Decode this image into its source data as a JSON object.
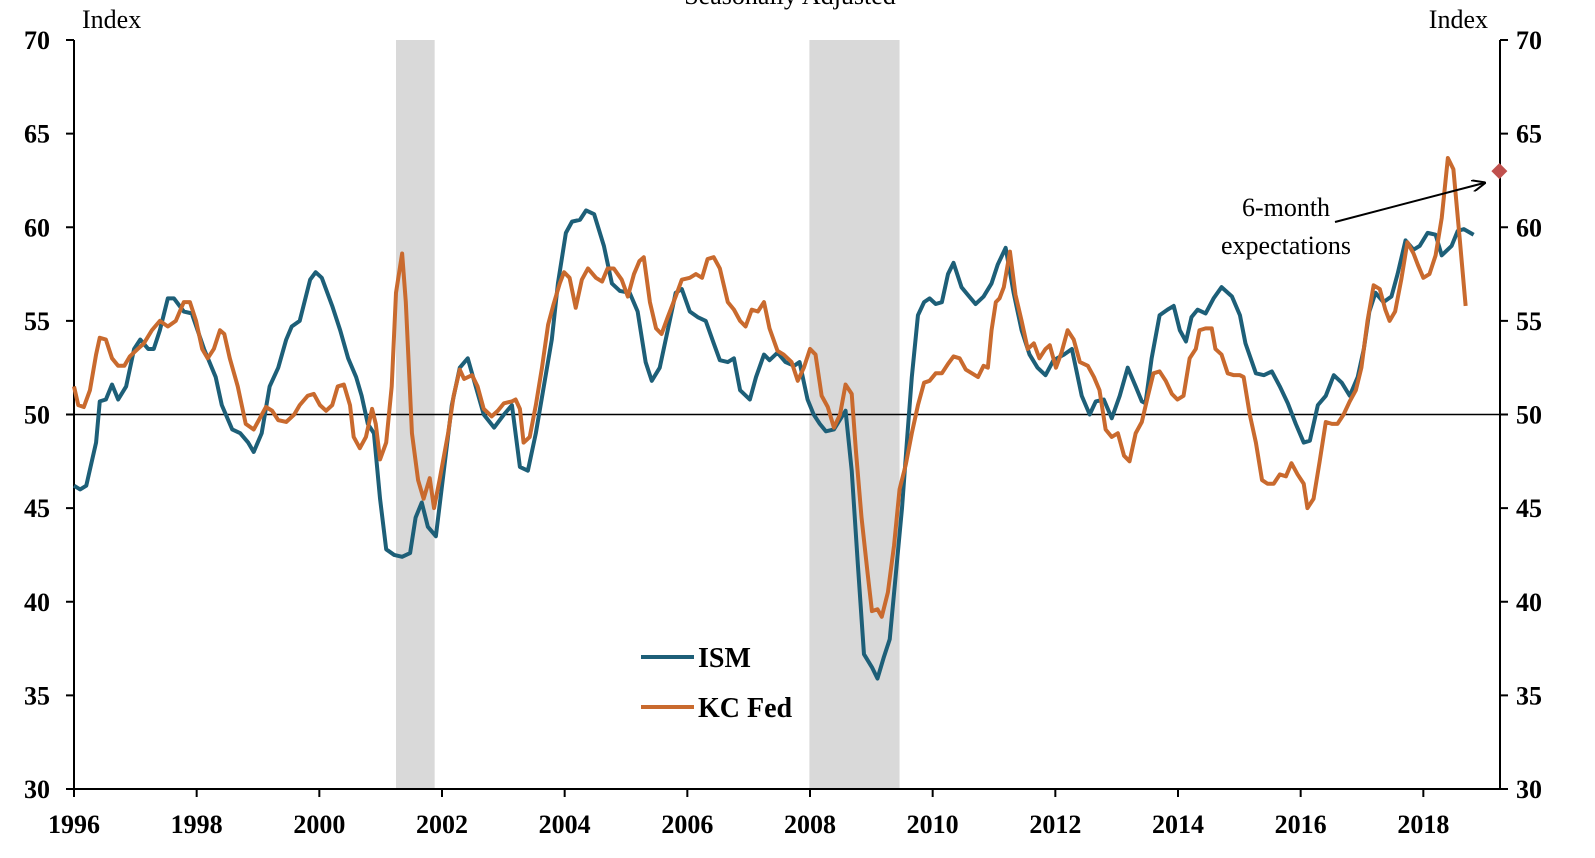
{
  "chart_data": {
    "type": "line",
    "subtitle": "Seasonally Adjusted",
    "y_label": "Index",
    "y2_label": "Index",
    "xlim": [
      1996,
      2019.25
    ],
    "xticks": [
      1996,
      1998,
      2000,
      2002,
      2004,
      2006,
      2008,
      2010,
      2012,
      2014,
      2016,
      2018
    ],
    "ylim": [
      30,
      70
    ],
    "yticks": [
      30,
      35,
      40,
      45,
      50,
      55,
      60,
      65,
      70
    ],
    "y2lim": [
      30,
      70
    ],
    "y2ticks": [
      30,
      35,
      40,
      45,
      50,
      55,
      60,
      65,
      70
    ],
    "hline": 50,
    "recession_color": "#d9d9d9",
    "recessions": [
      [
        2001.25,
        2001.88
      ],
      [
        2007.99,
        2009.46
      ]
    ],
    "series": [
      {
        "name": "ISM",
        "color": "#1d5f78",
        "x": [
          1996.0,
          1996.1,
          1996.2,
          1996.36,
          1996.42,
          1996.52,
          1996.62,
          1996.72,
          1996.85,
          1996.98,
          1997.08,
          1997.21,
          1997.3,
          1997.4,
          1997.53,
          1997.63,
          1997.79,
          1997.92,
          1998.12,
          1998.31,
          1998.41,
          1998.58,
          1998.71,
          1998.84,
          1998.93,
          1999.06,
          1999.19,
          1999.33,
          1999.46,
          1999.55,
          1999.68,
          1999.85,
          1999.94,
          2000.04,
          2000.21,
          2000.34,
          2000.47,
          2000.6,
          2000.69,
          2000.79,
          2000.89,
          2000.99,
          2001.09,
          2001.22,
          2001.35,
          2001.48,
          2001.57,
          2001.67,
          2001.77,
          2001.9,
          2002.03,
          2002.16,
          2002.29,
          2002.42,
          2002.55,
          2002.68,
          2002.85,
          2003.01,
          2003.14,
          2003.27,
          2003.4,
          2003.53,
          2003.66,
          2003.79,
          2003.89,
          2004.02,
          2004.12,
          2004.25,
          2004.35,
          2004.48,
          2004.64,
          2004.77,
          2004.9,
          2005.06,
          2005.19,
          2005.32,
          2005.42,
          2005.55,
          2005.68,
          2005.81,
          2005.91,
          2006.04,
          2006.17,
          2006.3,
          2006.43,
          2006.53,
          2006.66,
          2006.76,
          2006.86,
          2007.02,
          2007.12,
          2007.25,
          2007.34,
          2007.47,
          2007.6,
          2007.74,
          2007.83,
          2007.96,
          2008.06,
          2008.16,
          2008.26,
          2008.39,
          2008.58,
          2008.68,
          2008.78,
          2008.88,
          2009.01,
          2009.1,
          2009.2,
          2009.3,
          2009.4,
          2009.5,
          2009.59,
          2009.66,
          2009.76,
          2009.86,
          2009.95,
          2010.05,
          2010.15,
          2010.25,
          2010.34,
          2010.47,
          2010.57,
          2010.7,
          2010.83,
          2010.96,
          2011.06,
          2011.19,
          2011.32,
          2011.45,
          2011.58,
          2011.71,
          2011.84,
          2011.97,
          2012.14,
          2012.27,
          2012.43,
          2012.56,
          2012.66,
          2012.79,
          2012.92,
          2013.05,
          2013.18,
          2013.31,
          2013.41,
          2013.47,
          2013.57,
          2013.7,
          2013.83,
          2013.93,
          2014.03,
          2014.13,
          2014.22,
          2014.32,
          2014.45,
          2014.58,
          2014.71,
          2014.88,
          2015.01,
          2015.1,
          2015.27,
          2015.4,
          2015.53,
          2015.66,
          2015.79,
          2015.92,
          2016.05,
          2016.15,
          2016.28,
          2016.41,
          2016.54,
          2016.67,
          2016.8,
          2016.93,
          2017.03,
          2017.12,
          2017.22,
          2017.35,
          2017.48,
          2017.58,
          2017.71,
          2017.84,
          2017.94,
          2018.07,
          2018.2,
          2018.3,
          2018.46,
          2018.56,
          2018.66,
          2018.82
        ],
        "values": [
          46.2,
          46.0,
          46.2,
          48.5,
          50.7,
          50.8,
          51.6,
          50.8,
          51.5,
          53.5,
          54.0,
          53.5,
          53.5,
          54.5,
          56.2,
          56.2,
          55.5,
          55.4,
          53.5,
          52.0,
          50.5,
          49.2,
          49.0,
          48.5,
          48.0,
          49.0,
          51.5,
          52.5,
          54.0,
          54.7,
          55.0,
          57.2,
          57.6,
          57.3,
          55.8,
          54.5,
          53.0,
          52.0,
          51.0,
          49.5,
          49.0,
          45.5,
          42.8,
          42.5,
          42.4,
          42.6,
          44.5,
          45.3,
          44.0,
          43.5,
          47.0,
          50.5,
          52.5,
          53.0,
          51.5,
          50.0,
          49.3,
          50.0,
          50.5,
          47.2,
          47.0,
          49.0,
          51.5,
          54.0,
          57.0,
          59.7,
          60.3,
          60.4,
          60.9,
          60.7,
          59.0,
          57.0,
          56.6,
          56.5,
          55.5,
          52.8,
          51.8,
          52.5,
          54.5,
          56.5,
          56.7,
          55.5,
          55.2,
          55.0,
          53.8,
          52.9,
          52.8,
          53.0,
          51.3,
          50.8,
          52.0,
          53.2,
          52.9,
          53.3,
          52.8,
          52.6,
          52.8,
          50.8,
          50.0,
          49.5,
          49.1,
          49.2,
          50.2,
          47.0,
          42.0,
          37.2,
          36.5,
          35.9,
          37.0,
          38.0,
          41.5,
          45.0,
          49.0,
          52.0,
          55.3,
          56.0,
          56.2,
          55.9,
          56.0,
          57.5,
          58.1,
          56.8,
          56.4,
          55.9,
          56.3,
          57.0,
          58.0,
          58.9,
          56.5,
          54.5,
          53.2,
          52.5,
          52.1,
          52.9,
          53.2,
          53.5,
          51.0,
          50.0,
          50.7,
          50.8,
          49.8,
          51.0,
          52.5,
          51.5,
          50.7,
          50.6,
          53.0,
          55.3,
          55.6,
          55.8,
          54.5,
          53.9,
          55.2,
          55.6,
          55.4,
          56.2,
          56.8,
          56.3,
          55.3,
          53.8,
          52.2,
          52.1,
          52.3,
          51.5,
          50.6,
          49.5,
          48.5,
          48.6,
          50.5,
          51.0,
          52.1,
          51.7,
          51.0,
          52.0,
          53.5,
          55.5,
          56.5,
          56.0,
          56.3,
          57.5,
          59.3,
          58.8,
          59.0,
          59.7,
          59.6,
          58.5,
          59.0,
          59.8,
          59.9,
          59.6
        ]
      },
      {
        "name": "KC Fed",
        "color": "#c96a2e",
        "x": [
          1996.0,
          1996.07,
          1996.16,
          1996.26,
          1996.36,
          1996.42,
          1996.52,
          1996.62,
          1996.72,
          1996.82,
          1996.91,
          1997.04,
          1997.14,
          1997.27,
          1997.4,
          1997.53,
          1997.66,
          1997.79,
          1997.89,
          1997.99,
          1998.09,
          1998.18,
          1998.28,
          1998.38,
          1998.45,
          1998.54,
          1998.67,
          1998.8,
          1998.93,
          1999.03,
          1999.13,
          1999.23,
          1999.33,
          1999.46,
          1999.59,
          1999.68,
          1999.81,
          1999.91,
          2000.01,
          2000.11,
          2000.21,
          2000.3,
          2000.4,
          2000.5,
          2000.56,
          2000.66,
          2000.76,
          2000.86,
          2000.92,
          2000.99,
          2001.09,
          2001.18,
          2001.25,
          2001.35,
          2001.41,
          2001.51,
          2001.61,
          2001.7,
          2001.8,
          2001.87,
          2001.96,
          2002.1,
          2002.19,
          2002.29,
          2002.36,
          2002.49,
          2002.58,
          2002.68,
          2002.81,
          2002.91,
          2003.01,
          2003.14,
          2003.2,
          2003.27,
          2003.33,
          2003.43,
          2003.53,
          2003.63,
          2003.73,
          2003.82,
          2003.92,
          2003.99,
          2004.08,
          2004.18,
          2004.28,
          2004.38,
          2004.51,
          2004.61,
          2004.7,
          2004.8,
          2004.93,
          2005.03,
          2005.13,
          2005.22,
          2005.29,
          2005.39,
          2005.49,
          2005.58,
          2005.68,
          2005.81,
          2005.91,
          2006.04,
          2006.14,
          2006.24,
          2006.33,
          2006.43,
          2006.53,
          2006.66,
          2006.76,
          2006.86,
          2006.95,
          2007.05,
          2007.15,
          2007.25,
          2007.34,
          2007.47,
          2007.57,
          2007.7,
          2007.8,
          2007.9,
          2008.0,
          2008.09,
          2008.19,
          2008.29,
          2008.39,
          2008.49,
          2008.58,
          2008.68,
          2008.75,
          2008.84,
          2008.94,
          2009.01,
          2009.1,
          2009.17,
          2009.27,
          2009.37,
          2009.46,
          2009.56,
          2009.66,
          2009.76,
          2009.86,
          2009.95,
          2010.05,
          2010.15,
          2010.25,
          2010.34,
          2010.44,
          2010.54,
          2010.64,
          2010.74,
          2010.83,
          2010.9,
          2010.96,
          2011.03,
          2011.09,
          2011.16,
          2011.26,
          2011.35,
          2011.45,
          2011.55,
          2011.65,
          2011.74,
          2011.84,
          2011.91,
          2012.01,
          2012.1,
          2012.2,
          2012.3,
          2012.4,
          2012.53,
          2012.63,
          2012.72,
          2012.82,
          2012.92,
          2013.02,
          2013.12,
          2013.21,
          2013.31,
          2013.41,
          2013.51,
          2013.6,
          2013.7,
          2013.8,
          2013.9,
          2013.99,
          2014.09,
          2014.19,
          2014.29,
          2014.35,
          2014.45,
          2014.55,
          2014.61,
          2014.71,
          2014.81,
          2014.91,
          2015.01,
          2015.07,
          2015.17,
          2015.27,
          2015.37,
          2015.46,
          2015.56,
          2015.66,
          2015.76,
          2015.85,
          2015.95,
          2016.05,
          2016.11,
          2016.21,
          2016.31,
          2016.41,
          2016.51,
          2016.6,
          2016.7,
          2016.8,
          2016.9,
          2016.99,
          2017.09,
          2017.19,
          2017.29,
          2017.38,
          2017.45,
          2017.54,
          2017.64,
          2017.74,
          2017.84,
          2017.91,
          2018.0,
          2018.1,
          2018.2,
          2018.3,
          2018.4,
          2018.49,
          2018.59,
          2018.69
        ],
        "values": [
          51.5,
          50.5,
          50.4,
          51.3,
          53.2,
          54.1,
          54.0,
          53.0,
          52.6,
          52.6,
          53.1,
          53.5,
          53.8,
          54.5,
          55.0,
          54.7,
          55.0,
          56.0,
          56.0,
          55.0,
          53.5,
          53.0,
          53.5,
          54.5,
          54.3,
          53.0,
          51.5,
          49.5,
          49.2,
          49.8,
          50.4,
          50.2,
          49.7,
          49.6,
          50.0,
          50.5,
          51.0,
          51.1,
          50.5,
          50.2,
          50.5,
          51.5,
          51.6,
          50.5,
          48.8,
          48.2,
          48.8,
          50.3,
          49.5,
          47.6,
          48.5,
          51.5,
          56.5,
          58.6,
          56.0,
          49.0,
          46.5,
          45.5,
          46.6,
          45.0,
          46.5,
          49.0,
          51.0,
          52.4,
          51.9,
          52.1,
          51.5,
          50.3,
          49.9,
          50.2,
          50.6,
          50.7,
          50.8,
          50.3,
          48.5,
          48.8,
          50.5,
          52.5,
          54.8,
          55.9,
          57.0,
          57.6,
          57.3,
          55.7,
          57.2,
          57.8,
          57.3,
          57.1,
          57.8,
          57.8,
          57.2,
          56.3,
          57.5,
          58.2,
          58.4,
          56.0,
          54.6,
          54.3,
          55.2,
          56.3,
          57.2,
          57.3,
          57.5,
          57.3,
          58.3,
          58.4,
          57.8,
          56.0,
          55.6,
          55.0,
          54.7,
          55.6,
          55.5,
          56.0,
          54.6,
          53.4,
          53.2,
          52.8,
          51.8,
          52.5,
          53.5,
          53.2,
          51.0,
          50.4,
          49.3,
          50.0,
          51.6,
          51.1,
          48.0,
          44.5,
          41.5,
          39.5,
          39.6,
          39.2,
          40.5,
          43.0,
          46.0,
          47.3,
          49.0,
          50.5,
          51.7,
          51.8,
          52.2,
          52.2,
          52.7,
          53.1,
          53.0,
          52.4,
          52.2,
          52.0,
          52.6,
          52.5,
          54.5,
          56.0,
          56.2,
          56.8,
          58.7,
          56.4,
          55.0,
          53.5,
          53.8,
          53.0,
          53.5,
          53.7,
          52.5,
          53.3,
          54.5,
          54.0,
          52.8,
          52.6,
          52.0,
          51.3,
          49.2,
          48.8,
          49.0,
          47.8,
          47.5,
          49.0,
          49.6,
          51.0,
          52.2,
          52.3,
          51.8,
          51.1,
          50.8,
          51.0,
          53.0,
          53.5,
          54.5,
          54.6,
          54.6,
          53.5,
          53.2,
          52.2,
          52.1,
          52.1,
          52.0,
          50.0,
          48.5,
          46.5,
          46.3,
          46.3,
          46.8,
          46.7,
          47.4,
          46.8,
          46.3,
          45.0,
          45.5,
          47.5,
          49.6,
          49.5,
          49.5,
          50.0,
          50.7,
          51.3,
          52.5,
          55.0,
          56.9,
          56.7,
          55.6,
          55.0,
          55.5,
          57.2,
          59.2,
          58.6,
          58.0,
          57.3,
          57.5,
          58.5,
          60.5,
          63.7,
          63.1,
          59.5,
          55.8
        ]
      }
    ],
    "expectations": {
      "x": 2019.24,
      "value": 63.0,
      "color": "#c0504d"
    },
    "annotation": [
      "6-month",
      "expectations"
    ]
  }
}
